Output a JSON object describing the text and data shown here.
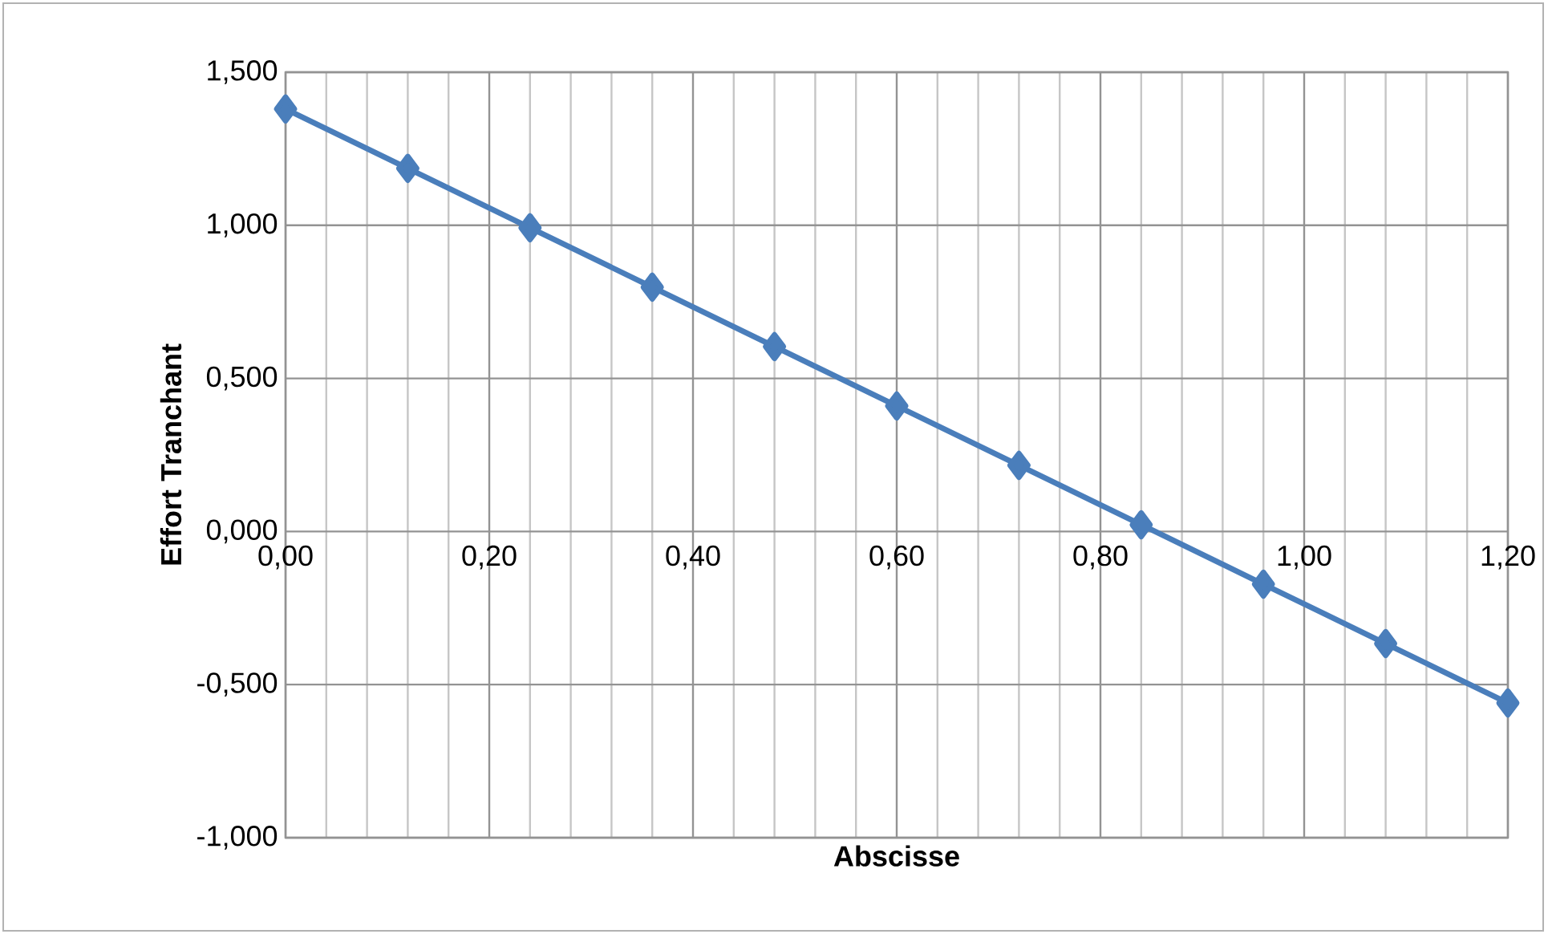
{
  "chart_data": {
    "type": "line",
    "xlabel": "Abscisse",
    "ylabel": "Effort Tranchant",
    "x": [
      0,
      0.12,
      0.24,
      0.36,
      0.48,
      0.6,
      0.72,
      0.84,
      0.96,
      1.08,
      1.2
    ],
    "series": [
      {
        "color": "#4a7ebb",
        "values": [
          1.38,
          1.186,
          0.992,
          0.798,
          0.604,
          0.41,
          0.216,
          0.022,
          -0.172,
          -0.366,
          -0.56
        ]
      }
    ],
    "marker": "diamond",
    "line_style": "solid",
    "grid": true,
    "xlim": [
      0,
      1.2
    ],
    "ylim": [
      -1,
      1.5
    ],
    "xticks": [
      {
        "value": 0,
        "label": "0,00"
      },
      {
        "value": 0.04,
        "label": null
      },
      {
        "value": 0.08,
        "label": null
      },
      {
        "value": 0.12,
        "label": null
      },
      {
        "value": 0.16,
        "label": null
      },
      {
        "value": 0.2,
        "label": "0,20"
      },
      {
        "value": 0.24,
        "label": null
      },
      {
        "value": 0.28,
        "label": null
      },
      {
        "value": 0.32,
        "label": null
      },
      {
        "value": 0.36,
        "label": null
      },
      {
        "value": 0.4,
        "label": "0,40"
      },
      {
        "value": 0.44,
        "label": null
      },
      {
        "value": 0.48,
        "label": null
      },
      {
        "value": 0.52,
        "label": null
      },
      {
        "value": 0.56,
        "label": null
      },
      {
        "value": 0.6,
        "label": "0,60"
      },
      {
        "value": 0.64,
        "label": null
      },
      {
        "value": 0.68,
        "label": null
      },
      {
        "value": 0.72,
        "label": null
      },
      {
        "value": 0.76,
        "label": null
      },
      {
        "value": 0.8,
        "label": "0,80"
      },
      {
        "value": 0.84,
        "label": null
      },
      {
        "value": 0.88,
        "label": null
      },
      {
        "value": 0.92,
        "label": null
      },
      {
        "value": 0.96,
        "label": null
      },
      {
        "value": 1.0,
        "label": "1,00"
      },
      {
        "value": 1.04,
        "label": null
      },
      {
        "value": 1.08,
        "label": null
      },
      {
        "value": 1.12,
        "label": null
      },
      {
        "value": 1.16,
        "label": null
      },
      {
        "value": 1.2,
        "label": "1,20"
      }
    ],
    "yticks": [
      {
        "value": -1,
        "label": "-1,000"
      },
      {
        "value": -0.5,
        "label": "-0,500"
      },
      {
        "value": 0,
        "label": "0,000"
      },
      {
        "value": 0.5,
        "label": "0,500"
      },
      {
        "value": 1,
        "label": "1,000"
      },
      {
        "value": 1.5,
        "label": "1,500"
      }
    ]
  }
}
